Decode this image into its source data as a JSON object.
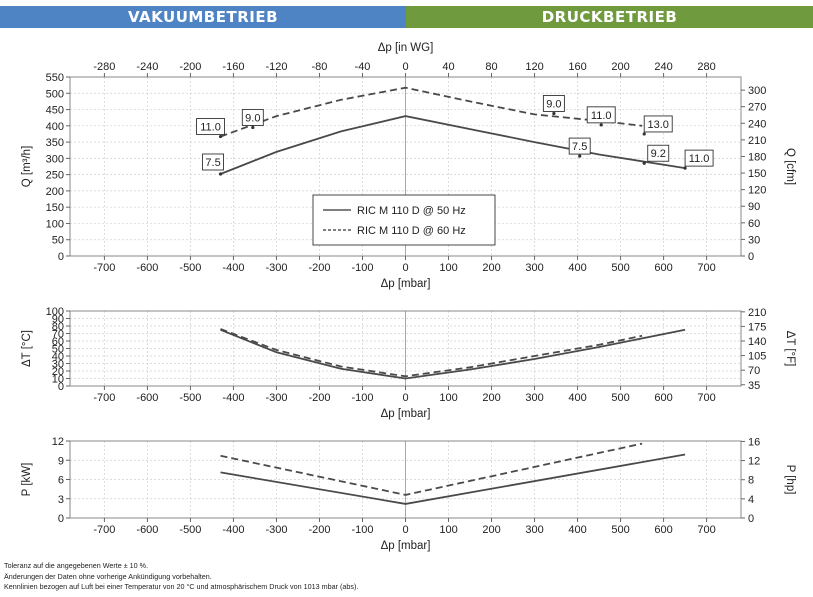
{
  "header": {
    "left": "VAKUUMBETRIEB",
    "right": "DRUCKBETRIEB",
    "left_color": "#4f84c4",
    "right_color": "#6f9a3d"
  },
  "footer": {
    "line1": "Toleranz auf die angegebenen Werte ± 10 %.",
    "line2": "Änderungen der Daten ohne vorherige Ankündigung vorbehalten.",
    "line3": "Kennlinien bezogen auf Luft bei einer Temperatur von 20 °C und atmosphärischem Druck von 1013 mbar (abs)."
  },
  "chart_data": [
    {
      "type": "line",
      "xlabel": "Δp [mbar]",
      "x2label": "Δp [in WG]",
      "ylabel": "Q [m³/h]",
      "y2label": "Q [cfm]",
      "xlim": [
        -780,
        780
      ],
      "ylim": [
        0,
        550
      ],
      "xticks": [
        -700,
        -600,
        -500,
        -400,
        -300,
        -200,
        -100,
        0,
        100,
        200,
        300,
        400,
        500,
        600,
        700
      ],
      "yticks": [
        0,
        50,
        100,
        150,
        200,
        250,
        300,
        350,
        400,
        450,
        500,
        550
      ],
      "x2ticks": [
        -280,
        -240,
        -200,
        -160,
        -120,
        -80,
        -40,
        0,
        40,
        80,
        120,
        160,
        200,
        240,
        280
      ],
      "y2ticks": [
        0,
        30,
        60,
        90,
        120,
        150,
        180,
        210,
        240,
        270,
        300
      ],
      "grid": true,
      "series": [
        {
          "name": "RIC M 110 D @ 50 Hz",
          "style": "solid",
          "x": [
            -430,
            -300,
            -150,
            0,
            150,
            300,
            450,
            650
          ],
          "y": [
            252,
            320,
            383,
            430,
            390,
            350,
            312,
            270
          ]
        },
        {
          "name": "RIC M 110 D @ 60 Hz",
          "style": "dashed",
          "x": [
            -430,
            -300,
            -150,
            0,
            150,
            300,
            450,
            550
          ],
          "y": [
            367,
            430,
            480,
            517,
            475,
            435,
            415,
            400
          ]
        }
      ],
      "annotations": [
        {
          "text": "7.5",
          "x": -430,
          "y": 252
        },
        {
          "text": "11.0",
          "x": -430,
          "y": 367
        },
        {
          "text": "9.0",
          "x": -355,
          "y": 395
        },
        {
          "text": "7.5",
          "x": 405,
          "y": 307
        },
        {
          "text": "9.2",
          "x": 555,
          "y": 285
        },
        {
          "text": "11.0",
          "x": 650,
          "y": 270
        },
        {
          "text": "9.0",
          "x": 345,
          "y": 438
        },
        {
          "text": "11.0",
          "x": 455,
          "y": 403
        },
        {
          "text": "13.0",
          "x": 555,
          "y": 375
        }
      ],
      "legend": "center"
    },
    {
      "type": "line",
      "xlabel": "Δp [mbar]",
      "ylabel": "ΔT [°C]",
      "y2label": "ΔT [°F]",
      "xlim": [
        -780,
        780
      ],
      "ylim": [
        0,
        100
      ],
      "xticks": [
        -700,
        -600,
        -500,
        -400,
        -300,
        -200,
        -100,
        0,
        100,
        200,
        300,
        400,
        500,
        600,
        700
      ],
      "yticks": [
        0,
        10,
        20,
        30,
        40,
        50,
        60,
        70,
        80,
        90,
        100
      ],
      "y2ticks": [
        35,
        70,
        105,
        140,
        175,
        210
      ],
      "grid": true,
      "series": [
        {
          "name": "RIC M 110 D @ 50 Hz",
          "style": "solid",
          "x": [
            -430,
            -300,
            -150,
            0,
            150,
            300,
            450,
            650
          ],
          "y": [
            75,
            45,
            23,
            10,
            22,
            36,
            52,
            75
          ]
        },
        {
          "name": "RIC M 110 D @ 60 Hz",
          "style": "dashed",
          "x": [
            -430,
            -300,
            -150,
            0,
            150,
            300,
            450,
            550
          ],
          "y": [
            76,
            48,
            26,
            13,
            25,
            40,
            55,
            67
          ]
        }
      ]
    },
    {
      "type": "line",
      "xlabel": "Δp [mbar]",
      "ylabel": "P [kW]",
      "y2label": "P [hp]",
      "xlim": [
        -780,
        780
      ],
      "ylim": [
        0,
        12
      ],
      "xticks": [
        -700,
        -600,
        -500,
        -400,
        -300,
        -200,
        -100,
        0,
        100,
        200,
        300,
        400,
        500,
        600,
        700
      ],
      "yticks": [
        0,
        3,
        6,
        9,
        12
      ],
      "y2ticks": [
        0,
        4,
        8,
        12,
        16
      ],
      "grid": true,
      "series": [
        {
          "name": "RIC M 110 D @ 50 Hz",
          "style": "solid",
          "x": [
            -430,
            0,
            650
          ],
          "y": [
            7.1,
            2.2,
            9.9
          ]
        },
        {
          "name": "RIC M 110 D @ 60 Hz",
          "style": "dashed",
          "x": [
            -430,
            0,
            550
          ],
          "y": [
            9.7,
            3.6,
            11.6
          ]
        }
      ]
    }
  ]
}
